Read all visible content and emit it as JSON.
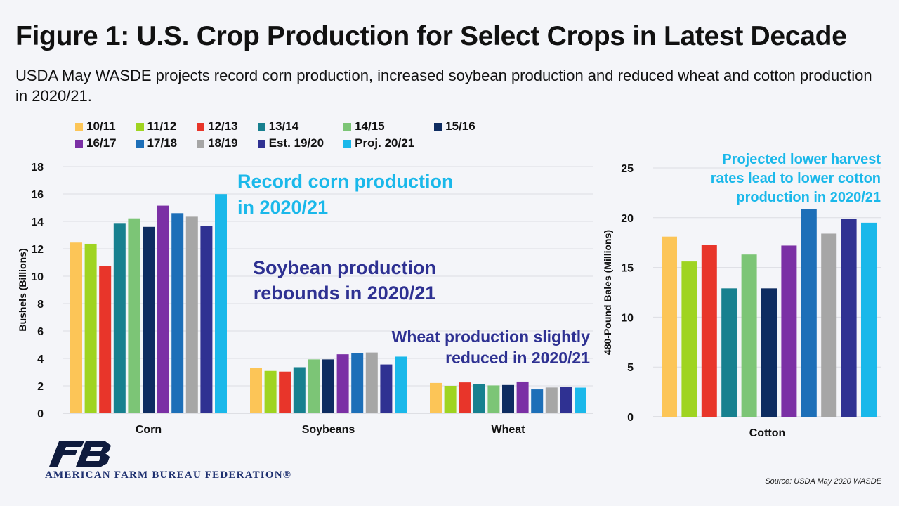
{
  "title": "Figure 1: U.S. Crop Production for Select Crops in Latest Decade",
  "subtitle": "USDA May WASDE projects record corn production, increased soybean production and reduced wheat and cotton production in 2020/21.",
  "source": "Source:  USDA  May 2020 WASDE",
  "logo_text": "AMERICAN FARM BUREAU FEDERATION®",
  "colors": {
    "10/11": "#fcc557",
    "11/12": "#9fd421",
    "12/13": "#e8352a",
    "13/14": "#17808f",
    "14/15": "#7cc576",
    "15/16": "#0e2c61",
    "16/17": "#7b30a5",
    "17/18": "#1d6fb8",
    "18/19": "#a6a6a6",
    "Est. 19/20": "#2f3192",
    "Proj. 20/21": "#1ab8ea"
  },
  "annotations": {
    "corn": "Record corn production\nin 2020/21",
    "soybeans": "Soybean production\nrebounds in 2020/21",
    "wheat": "Wheat production slightly\nreduced in 2020/21",
    "cotton": "Projected lower harvest\nrates lead to lower cotton\nproduction in 2020/21"
  },
  "chart_data": [
    {
      "type": "bar",
      "ylabel": "Bushels (Billions)",
      "ylim": [
        0,
        18
      ],
      "yticks": [
        0,
        2,
        4,
        6,
        8,
        10,
        12,
        14,
        16,
        18
      ],
      "legend_position": "top",
      "categories": [
        "Corn",
        "Soybeans",
        "Wheat"
      ],
      "series": [
        {
          "name": "10/11",
          "values": [
            12.45,
            3.33,
            2.21
          ]
        },
        {
          "name": "11/12",
          "values": [
            12.36,
            3.09,
            2.0
          ]
        },
        {
          "name": "12/13",
          "values": [
            10.76,
            3.04,
            2.25
          ]
        },
        {
          "name": "13/14",
          "values": [
            13.83,
            3.36,
            2.14
          ]
        },
        {
          "name": "14/15",
          "values": [
            14.22,
            3.93,
            2.03
          ]
        },
        {
          "name": "15/16",
          "values": [
            13.6,
            3.93,
            2.06
          ]
        },
        {
          "name": "16/17",
          "values": [
            15.15,
            4.3,
            2.31
          ]
        },
        {
          "name": "17/18",
          "values": [
            14.6,
            4.41,
            1.74
          ]
        },
        {
          "name": "18/19",
          "values": [
            14.34,
            4.43,
            1.88
          ]
        },
        {
          "name": "Est. 19/20",
          "values": [
            13.66,
            3.56,
            1.92
          ]
        },
        {
          "name": "Proj. 20/21",
          "values": [
            15.99,
            4.13,
            1.87
          ]
        }
      ]
    },
    {
      "type": "bar",
      "ylabel": "480-Pound Bales (Millions)",
      "ylim": [
        0,
        25
      ],
      "yticks": [
        0,
        5,
        10,
        15,
        20,
        25
      ],
      "categories": [
        "Cotton"
      ],
      "series": [
        {
          "name": "10/11",
          "values": [
            18.1
          ]
        },
        {
          "name": "11/12",
          "values": [
            15.6
          ]
        },
        {
          "name": "12/13",
          "values": [
            17.3
          ]
        },
        {
          "name": "13/14",
          "values": [
            12.9
          ]
        },
        {
          "name": "14/15",
          "values": [
            16.3
          ]
        },
        {
          "name": "15/16",
          "values": [
            12.9
          ]
        },
        {
          "name": "16/17",
          "values": [
            17.2
          ]
        },
        {
          "name": "17/18",
          "values": [
            20.9
          ]
        },
        {
          "name": "18/19",
          "values": [
            18.4
          ]
        },
        {
          "name": "Est. 19/20",
          "values": [
            19.9
          ]
        },
        {
          "name": "Proj. 20/21",
          "values": [
            19.5
          ]
        }
      ]
    }
  ]
}
